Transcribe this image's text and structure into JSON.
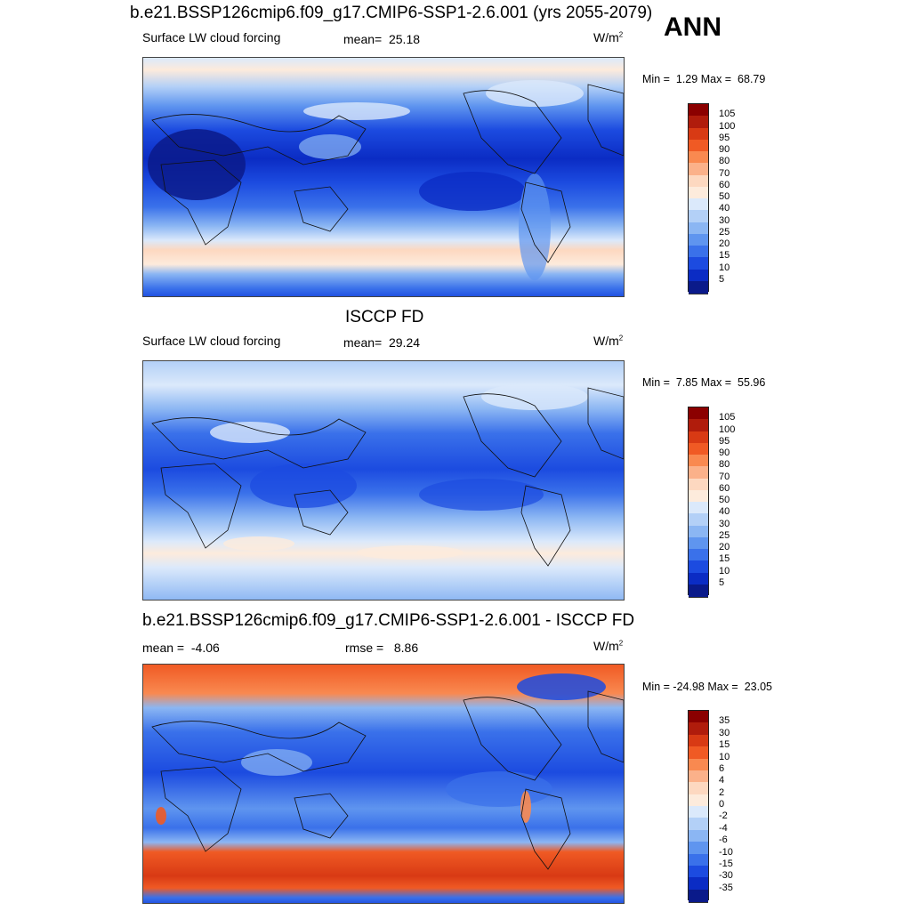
{
  "season": "ANN",
  "panels": [
    {
      "title": "b.e21.BSSP126cmip6.f09_g17.CMIP6-SSP1-2.6.001 (yrs 2055-2079)",
      "variable": "Surface LW cloud forcing",
      "stat_label": "mean=",
      "stat_value": "25.18",
      "stat2_label": "",
      "stat2_value": "",
      "units_base": "W/m",
      "units_exp": "2",
      "min_label": "Min =",
      "min_value": "1.29",
      "max_label": "Max =",
      "max_value": "68.79",
      "colorbar": {
        "ticks": [
          "105",
          "100",
          "95",
          "90",
          "80",
          "70",
          "60",
          "50",
          "40",
          "30",
          "25",
          "20",
          "15",
          "10",
          "5"
        ],
        "colors": [
          "#8b0000",
          "#b01c0c",
          "#d83a14",
          "#f05a24",
          "#f98950",
          "#fbb18a",
          "#fdd8c0",
          "#fdebdc",
          "#dbe9fb",
          "#b3d0f7",
          "#8bb6f3",
          "#5f95ef",
          "#3a71ea",
          "#1c4be0",
          "#0b2cc4",
          "#0a1a8a"
        ]
      }
    },
    {
      "title": "ISCCP FD",
      "variable": "Surface LW cloud forcing",
      "stat_label": "mean=",
      "stat_value": "29.24",
      "stat2_label": "",
      "stat2_value": "",
      "units_base": "W/m",
      "units_exp": "2",
      "min_label": "Min =",
      "min_value": "7.85",
      "max_label": "Max =",
      "max_value": "55.96",
      "colorbar": {
        "ticks": [
          "105",
          "100",
          "95",
          "90",
          "80",
          "70",
          "60",
          "50",
          "40",
          "30",
          "25",
          "20",
          "15",
          "10",
          "5"
        ],
        "colors": [
          "#8b0000",
          "#b01c0c",
          "#d83a14",
          "#f05a24",
          "#f98950",
          "#fbb18a",
          "#fdd8c0",
          "#fdebdc",
          "#dbe9fb",
          "#b3d0f7",
          "#8bb6f3",
          "#5f95ef",
          "#3a71ea",
          "#1c4be0",
          "#0b2cc4",
          "#0a1a8a"
        ]
      }
    },
    {
      "title": "b.e21.BSSP126cmip6.f09_g17.CMIP6-SSP1-2.6.001 - ISCCP FD",
      "variable": "mean =",
      "stat_label": "",
      "stat_value": "-4.06",
      "stat2_label": "rmse =",
      "stat2_value": "8.86",
      "units_base": "W/m",
      "units_exp": "2",
      "min_label": "Min =",
      "min_value": "-24.98",
      "max_label": "Max =",
      "max_value": "23.05",
      "colorbar": {
        "ticks": [
          "35",
          "30",
          "15",
          "10",
          "6",
          "4",
          "2",
          "0",
          "-2",
          "-4",
          "-6",
          "-10",
          "-15",
          "-30",
          "-35"
        ],
        "colors": [
          "#8b0000",
          "#b01c0c",
          "#d83a14",
          "#f05a24",
          "#f98950",
          "#fbb18a",
          "#fdd8c0",
          "#fdebdc",
          "#dbe9fb",
          "#b3d0f7",
          "#8bb6f3",
          "#5f95ef",
          "#3a71ea",
          "#1c4be0",
          "#0b2cc4",
          "#0a1a8a"
        ]
      }
    }
  ]
}
